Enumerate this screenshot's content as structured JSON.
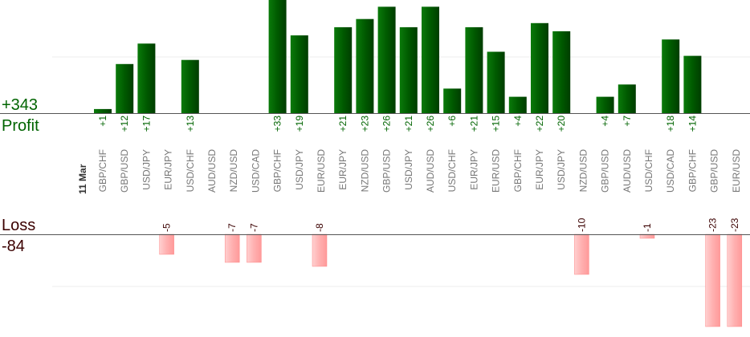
{
  "chart_data": {
    "type": "bar",
    "date_label": "11 Mar",
    "profit": {
      "label": "Profit",
      "total": "+343",
      "color": "#006400"
    },
    "loss": {
      "label": "Loss",
      "total": "-84",
      "color": "#ffaaaa"
    },
    "categories": [
      "GBP/CHF",
      "GBP/USD",
      "USD/JPY",
      "EUR/JPY",
      "USD/CHF",
      "AUD/USD",
      "NZD/USD",
      "USD/CAD",
      "GBP/CHF",
      "USD/JPY",
      "EUR/USD",
      "EUR/JPY",
      "NZD/USD",
      "GBP/USD",
      "USD/JPY",
      "AUD/USD",
      "USD/CHF",
      "EUR/JPY",
      "EUR/USD",
      "GBP/CHF",
      "EUR/JPY",
      "USD/JPY",
      "NZD/USD",
      "GBP/USD",
      "AUD/USD",
      "USD/CHF",
      "USD/CAD",
      "GBP/CHF",
      "GBP/USD",
      "EUR/USD"
    ],
    "values": [
      1,
      12,
      17,
      -5,
      13,
      null,
      -7,
      -7,
      33,
      19,
      -8,
      21,
      23,
      26,
      21,
      26,
      6,
      21,
      15,
      4,
      22,
      20,
      -10,
      4,
      7,
      -1,
      18,
      14,
      -23,
      -23
    ],
    "value_labels": [
      "+1",
      "+12",
      "+17",
      "-5",
      "+13",
      "",
      "-7",
      "-7",
      "+33",
      "+19",
      "-8",
      "+21",
      "+23",
      "+26",
      "+21",
      "+26",
      "+6",
      "+21",
      "+15",
      "+4",
      "+22",
      "+20",
      "-10",
      "+4",
      "+7",
      "-1",
      "+18",
      "+14",
      "-23",
      "-23"
    ]
  }
}
